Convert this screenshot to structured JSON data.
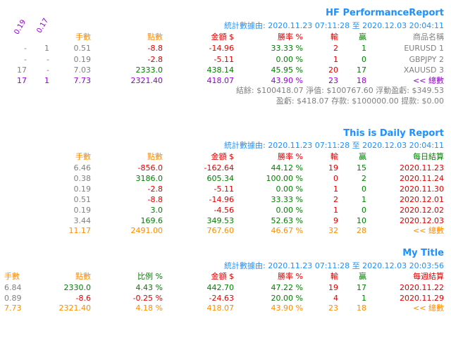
{
  "report1": {
    "title": "HF PerformanceReport",
    "stats_line": "統計數據由: 2020.11.23 07:11:28 至 2020.12.03 20:04:11",
    "rot_labels": [
      "0.19",
      "0.17"
    ],
    "headers": {
      "lots": "手數",
      "points": "點數",
      "amount": "金額 $",
      "winrate": "勝率 %",
      "loss": "輸",
      "win": "贏",
      "name": "商品名稱"
    },
    "rows": [
      {
        "c1": "-",
        "c2": "1",
        "lots": "0.51",
        "points": "-8.8",
        "amount": "-14.96",
        "winrate": "33.33 %",
        "loss": "2",
        "win": "1",
        "name": "EURUSD 1"
      },
      {
        "c1": "-",
        "c2": "-",
        "lots": "0.19",
        "points": "-2.8",
        "amount": "-5.11",
        "winrate": "0.00 %",
        "loss": "1",
        "win": "0",
        "name": "GBPJPY 2"
      },
      {
        "c1": "17",
        "c2": "-",
        "lots": "7.03",
        "points": "2333.0",
        "amount": "438.14",
        "winrate": "45.95 %",
        "loss": "20",
        "win": "17",
        "name": "XAUUSD 3"
      }
    ],
    "total": {
      "c1": "17",
      "c2": "1",
      "lots": "7.73",
      "points": "2321.40",
      "amount": "418.07",
      "winrate": "43.90 %",
      "loss": "23",
      "win": "18",
      "name": "<< 總數"
    },
    "summary1": "結餘: $100418.07 淨值: $100767.60 浮動盈虧: $349.53",
    "summary2": "盈虧: $418.07 存款: $100000.00 提款: $0.00"
  },
  "report2": {
    "title": "This is Daily Report",
    "stats_line": "統計數據由: 2020.11.23 07:11:28 至 2020.12.03 20:04:11",
    "headers": {
      "lots": "手數",
      "points": "點數",
      "amount": "金額 $",
      "winrate": "勝率 %",
      "loss": "輸",
      "win": "贏",
      "name": "每日結算"
    },
    "rows": [
      {
        "lots": "6.46",
        "points": "-856.0",
        "amount": "-162.64",
        "winrate": "44.12 %",
        "loss": "19",
        "win": "15",
        "name": "2020.11.23"
      },
      {
        "lots": "0.38",
        "points": "3186.0",
        "amount": "605.34",
        "winrate": "100.00 %",
        "loss": "0",
        "win": "2",
        "name": "2020.11.24"
      },
      {
        "lots": "0.19",
        "points": "-2.8",
        "amount": "-5.11",
        "winrate": "0.00 %",
        "loss": "1",
        "win": "0",
        "name": "2020.11.30"
      },
      {
        "lots": "0.51",
        "points": "-8.8",
        "amount": "-14.96",
        "winrate": "33.33 %",
        "loss": "2",
        "win": "1",
        "name": "2020.12.01"
      },
      {
        "lots": "0.19",
        "points": "3.0",
        "amount": "-4.56",
        "winrate": "0.00 %",
        "loss": "1",
        "win": "0",
        "name": "2020.12.02"
      },
      {
        "lots": "3.44",
        "points": "169.6",
        "amount": "349.53",
        "winrate": "52.63 %",
        "loss": "9",
        "win": "10",
        "name": "2020.12.03"
      }
    ],
    "total": {
      "lots": "11.17",
      "points": "2491.00",
      "amount": "767.60",
      "winrate": "46.67 %",
      "loss": "32",
      "win": "28",
      "name": "<< 總數"
    }
  },
  "report3": {
    "title": "My Title",
    "stats_line": "統計數據由: 2020.11.23 07:11:28 至 2020.12.03 20:03:56",
    "headers": {
      "lots": "手數",
      "points": "點數",
      "ratio": "比例 %",
      "amount": "金額 $",
      "winrate": "勝率 %",
      "loss": "輸",
      "win": "贏",
      "name": "每週結算"
    },
    "rows": [
      {
        "lots": "6.84",
        "points": "2330.0",
        "ratio": "4.43 %",
        "amount": "442.70",
        "winrate": "47.22 %",
        "loss": "19",
        "win": "17",
        "name": "2020.11.22"
      },
      {
        "lots": "0.89",
        "points": "-8.6",
        "ratio": "-0.25 %",
        "amount": "-24.63",
        "winrate": "20.00 %",
        "loss": "4",
        "win": "1",
        "name": "2020.11.29"
      }
    ],
    "total": {
      "lots": "7.73",
      "points": "2321.40",
      "ratio": "4.18 %",
      "amount": "418.07",
      "winrate": "43.90 %",
      "loss": "23",
      "win": "18",
      "name": "<< 總數"
    }
  }
}
